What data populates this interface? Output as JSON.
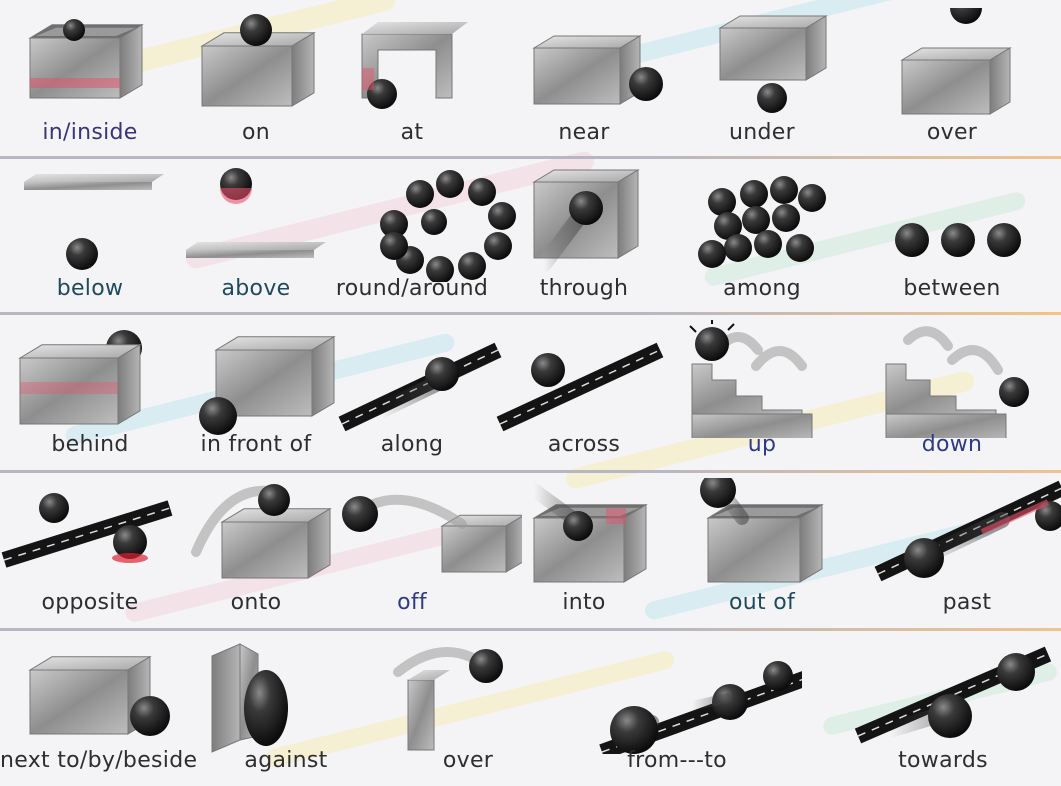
{
  "rows": [
    [
      {
        "label": "in/inside",
        "color": "#3a3478",
        "fig": "in"
      },
      {
        "label": "on",
        "color": "#2e2e2e",
        "fig": "on"
      },
      {
        "label": "at",
        "color": "#2e2e2e",
        "fig": "at"
      },
      {
        "label": "near",
        "color": "#2e2e2e",
        "fig": "near"
      },
      {
        "label": "under",
        "color": "#2e2e2e",
        "fig": "under"
      },
      {
        "label": "over",
        "color": "#2e2e2e",
        "fig": "over"
      }
    ],
    [
      {
        "label": "below",
        "color": "#1f4a5e",
        "fig": "below"
      },
      {
        "label": "above",
        "color": "#1f4a5e",
        "fig": "above"
      },
      {
        "label": "round/around",
        "color": "#2e2e2e",
        "fig": "around"
      },
      {
        "label": "through",
        "color": "#2e2e2e",
        "fig": "through"
      },
      {
        "label": "among",
        "color": "#2e2e2e",
        "fig": "among"
      },
      {
        "label": "between",
        "color": "#2e2e2e",
        "fig": "between"
      }
    ],
    [
      {
        "label": "behind",
        "color": "#2e2e2e",
        "fig": "behind"
      },
      {
        "label": "in front of",
        "color": "#2e2e2e",
        "fig": "front"
      },
      {
        "label": "along",
        "color": "#2e2e2e",
        "fig": "along"
      },
      {
        "label": "across",
        "color": "#2e2e2e",
        "fig": "across"
      },
      {
        "label": "up",
        "color": "#2f3a86",
        "fig": "up"
      },
      {
        "label": "down",
        "color": "#2f3a86",
        "fig": "down"
      }
    ],
    [
      {
        "label": "opposite",
        "color": "#2e2e2e",
        "fig": "opposite"
      },
      {
        "label": "onto",
        "color": "#2e2e2e",
        "fig": "onto"
      },
      {
        "label": "off",
        "color": "#2f3a86",
        "fig": "off"
      },
      {
        "label": "into",
        "color": "#2e2e2e",
        "fig": "into"
      },
      {
        "label": "out of",
        "color": "#1f4a5e",
        "fig": "outof"
      },
      {
        "label": "past",
        "color": "#2e2e2e",
        "fig": "past"
      }
    ],
    [
      {
        "label": "next to/by/beside",
        "color": "#2e2e2e",
        "fig": "next"
      },
      {
        "label": "against",
        "color": "#2e2e2e",
        "fig": "against"
      },
      {
        "label": "over",
        "color": "#2e2e2e",
        "fig": "over2"
      },
      {
        "label": "from---to",
        "color": "#2e2e2e",
        "fig": "fromto"
      },
      {
        "label": "towards",
        "color": "#2e2e2e",
        "fig": "towards"
      }
    ]
  ],
  "divider_color": "#b7b7c4",
  "ball_color": "#1a1a1a"
}
